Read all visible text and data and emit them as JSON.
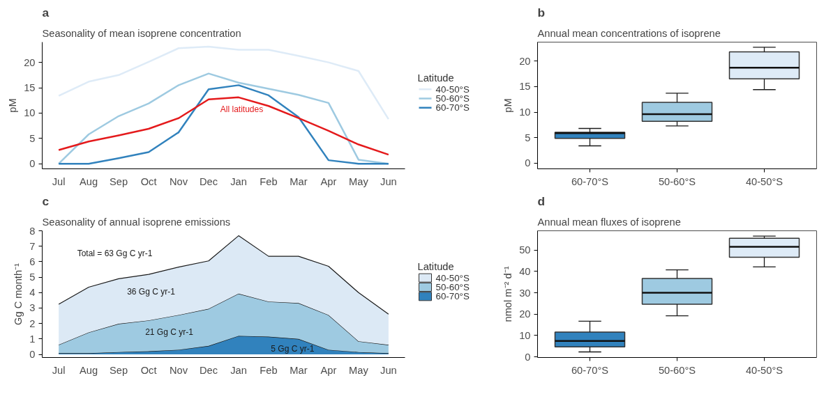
{
  "chart_data": [
    {
      "type": "line",
      "title": "a",
      "subtitle": "Seasonality of mean isoprene concentration",
      "ylabel": "pM",
      "legend_title": "Latitude",
      "legend": "right",
      "grid": false,
      "categories": [
        "Jul",
        "Aug",
        "Sep",
        "Oct",
        "Nov",
        "Dec",
        "Jan",
        "Feb",
        "Mar",
        "Apr",
        "May",
        "Jun"
      ],
      "ylim": [
        -1,
        24
      ],
      "yticks": [
        0,
        5,
        10,
        15,
        20
      ],
      "series": [
        {
          "name": "40-50°S",
          "color": "#deebf7",
          "values": [
            13.4,
            16.2,
            17.5,
            20.1,
            22.8,
            23.1,
            22.5,
            22.5,
            21.3,
            20.0,
            18.3,
            8.8
          ]
        },
        {
          "name": "50-60°S",
          "color": "#9ecae1",
          "values": [
            0,
            5.8,
            9.4,
            11.9,
            15.5,
            17.8,
            16.0,
            14.8,
            13.6,
            12.0,
            0.8,
            0
          ]
        },
        {
          "name": "60-70°S",
          "color": "#3182bd",
          "values": [
            0,
            0,
            1.1,
            2.3,
            6.2,
            14.7,
            15.5,
            13.5,
            9.2,
            0.7,
            0,
            0
          ]
        },
        {
          "color": "#e41a1c",
          "values": [
            2.7,
            4.4,
            5.6,
            6.9,
            9.0,
            12.7,
            13.1,
            11.4,
            9.0,
            6.5,
            3.8,
            1.8
          ]
        }
      ],
      "annotations": [
        "All latitudes"
      ]
    },
    {
      "type": "box",
      "title": "b",
      "subtitle": "Annual mean concentrations of isoprene",
      "ylabel": "pM",
      "grid": false,
      "categories": [
        "60-70°S",
        "50-60°S",
        "40-50°S"
      ],
      "colors": [
        "#3182bd",
        "#9ecae1",
        "#deebf7"
      ],
      "ylim": [
        -1.1,
        23.7
      ],
      "yticks": [
        0,
        5,
        10,
        15,
        20
      ],
      "boxes": [
        {
          "low": 3.4,
          "q1": 4.85,
          "median": 5.9,
          "q3": 6.05,
          "high": 6.8
        },
        {
          "low": 7.3,
          "q1": 8.2,
          "median": 9.6,
          "q3": 11.9,
          "high": 13.7
        },
        {
          "low": 14.4,
          "q1": 16.5,
          "median": 18.7,
          "q3": 21.8,
          "high": 22.7
        }
      ]
    },
    {
      "type": "area",
      "stacked": true,
      "title": "c",
      "subtitle": "Seasonality of annual isoprene emissions",
      "ylabel": "Gg C month⁻¹",
      "legend_title": "Latitude",
      "legend": "right",
      "grid": false,
      "categories": [
        "Jul",
        "Aug",
        "Sep",
        "Oct",
        "Nov",
        "Dec",
        "Jan",
        "Feb",
        "Mar",
        "Apr",
        "May",
        "Jun"
      ],
      "ylim": [
        -0.2,
        8
      ],
      "yticks": [
        0,
        1,
        2,
        3,
        4,
        5,
        6,
        7,
        8
      ],
      "series": [
        {
          "name": "60-70°S",
          "color": "#3182bd",
          "values": [
            0.08,
            0.08,
            0.15,
            0.2,
            0.3,
            0.55,
            1.2,
            1.15,
            1.0,
            0.3,
            0.15,
            0.08
          ]
        },
        {
          "name": "50-60°S",
          "color": "#9ecae1",
          "values": [
            0.54,
            1.34,
            1.83,
            2.0,
            2.25,
            2.4,
            2.73,
            2.27,
            2.32,
            2.25,
            0.7,
            0.54
          ]
        },
        {
          "name": "40-50°S",
          "color": "#dce9f5",
          "values": [
            2.63,
            2.93,
            2.92,
            2.98,
            3.1,
            3.1,
            3.75,
            2.93,
            3.03,
            3.15,
            3.15,
            1.98
          ]
        }
      ],
      "annotations": [
        "Total = 63 Gg C yr-1",
        "36 Gg C yr-1",
        "21 Gg C yr-1",
        "5 Gg C yr-1"
      ]
    },
    {
      "type": "box",
      "title": "d",
      "subtitle": "Annual mean fluxes of isoprene",
      "ylabel": "nmol m⁻² d⁻¹",
      "grid": false,
      "categories": [
        "60-70°S",
        "50-60°S",
        "40-50°S"
      ],
      "colors": [
        "#3182bd",
        "#9ecae1",
        "#deebf7"
      ],
      "ylim": [
        -0.3,
        59
      ],
      "yticks": [
        0,
        10,
        20,
        30,
        40,
        50
      ],
      "boxes": [
        {
          "low": 2.3,
          "q1": 4.7,
          "median": 7.4,
          "q3": 11.6,
          "high": 16.7
        },
        {
          "low": 19.2,
          "q1": 24.6,
          "median": 30.0,
          "q3": 36.7,
          "high": 40.7
        },
        {
          "low": 42.1,
          "q1": 46.6,
          "median": 51.5,
          "q3": 55.5,
          "high": 56.5
        }
      ]
    }
  ]
}
